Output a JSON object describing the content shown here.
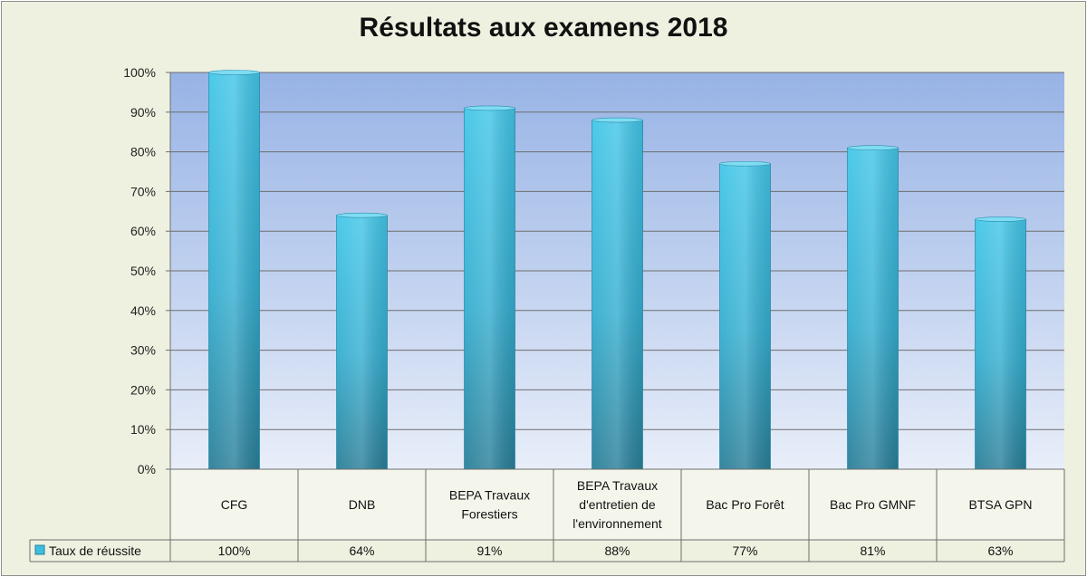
{
  "chart_data": {
    "type": "bar",
    "title": "Résultats aux examens 2018",
    "categories": [
      [
        "CFG"
      ],
      [
        "DNB"
      ],
      [
        "BEPA Travaux",
        "Forestiers"
      ],
      [
        "BEPA Travaux",
        "d'entretien de",
        "l'environnement"
      ],
      [
        "Bac Pro Forêt"
      ],
      [
        "Bac Pro GMNF"
      ],
      [
        "BTSA GPN"
      ]
    ],
    "series": [
      {
        "name": "Taux de réussite",
        "values": [
          100,
          64,
          91,
          88,
          77,
          81,
          63
        ],
        "labels": [
          "100%",
          "64%",
          "91%",
          "88%",
          "77%",
          "81%",
          "63%"
        ]
      }
    ],
    "y_ticks": [
      "0%",
      "10%",
      "20%",
      "30%",
      "40%",
      "50%",
      "60%",
      "70%",
      "80%",
      "90%",
      "100%"
    ],
    "ylim": [
      0,
      100
    ],
    "grid": true,
    "legend": "data-table-left",
    "colors": {
      "bar": "#3bbde0",
      "plot_bg_top": "#97b3e5",
      "plot_bg_bottom": "#e8eef9",
      "frame_bg": "#eef1e0"
    }
  }
}
